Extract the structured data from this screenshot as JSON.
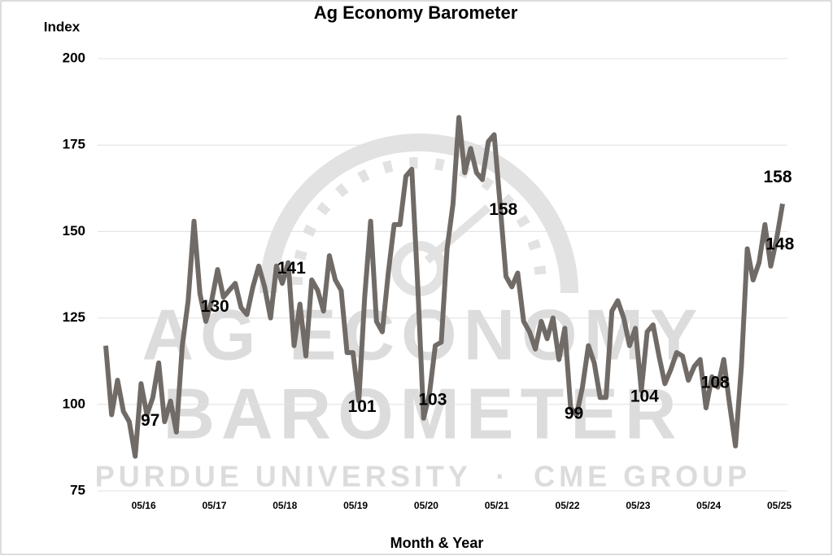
{
  "chart_data": {
    "type": "line",
    "title": "Ag Economy Barometer",
    "y_label": "Index",
    "x_label": "Month & Year",
    "watermark": [
      "AG ECONOMY",
      "BAROMETER",
      "PURDUE UNIVERSITY  ·  CME GROUP"
    ],
    "categories": [
      null,
      null,
      null,
      null,
      null,
      null,
      null,
      "05/16",
      null,
      null,
      null,
      null,
      null,
      null,
      null,
      null,
      null,
      null,
      null,
      "05/17",
      null,
      null,
      null,
      null,
      null,
      null,
      null,
      null,
      null,
      null,
      null,
      "05/18",
      null,
      null,
      null,
      null,
      null,
      null,
      null,
      null,
      null,
      null,
      null,
      "05/19",
      null,
      null,
      null,
      null,
      null,
      null,
      null,
      null,
      null,
      null,
      null,
      "05/20",
      null,
      null,
      null,
      null,
      null,
      null,
      null,
      null,
      null,
      null,
      null,
      "05/21",
      null,
      null,
      null,
      null,
      null,
      null,
      null,
      null,
      null,
      null,
      null,
      "05/22",
      null,
      null,
      null,
      null,
      null,
      null,
      null,
      null,
      null,
      null,
      null,
      "05/23",
      null,
      null,
      null,
      null,
      null,
      null,
      null,
      null,
      null,
      null,
      null,
      "05/24",
      null,
      null,
      null,
      null,
      null,
      null,
      null,
      null,
      null,
      null,
      null,
      "05/25"
    ],
    "series": [
      {
        "name": "Index",
        "color": "#716b67",
        "values": [
          117,
          97,
          107,
          98,
          95,
          85,
          106,
          97,
          102,
          112,
          95,
          101,
          92,
          117,
          130,
          153,
          132,
          124,
          130,
          139,
          131,
          133,
          135,
          128,
          126,
          134,
          140,
          134,
          125,
          140,
          135,
          141,
          117,
          129,
          114,
          136,
          133,
          127,
          143,
          136,
          133,
          115,
          115,
          101,
          131,
          153,
          124,
          121,
          138,
          152,
          152,
          166,
          168,
          135,
          96,
          103,
          117,
          118,
          145,
          158,
          183,
          167,
          174,
          167,
          165,
          176,
          178,
          158,
          137,
          134,
          138,
          124,
          121,
          116,
          124,
          119,
          125,
          113,
          122,
          99,
          97,
          105,
          117,
          112,
          102,
          102,
          127,
          130,
          125,
          117,
          122,
          104,
          121,
          123,
          114,
          106,
          110,
          115,
          114,
          107,
          111,
          113,
          99,
          108,
          105,
          113,
          100,
          88,
          111,
          145,
          136,
          141,
          152,
          140,
          148,
          158
        ],
        "value_labels": [
          null,
          null,
          null,
          null,
          null,
          null,
          null,
          "97",
          null,
          null,
          null,
          null,
          null,
          null,
          null,
          null,
          null,
          null,
          "130",
          null,
          null,
          null,
          null,
          null,
          null,
          null,
          null,
          null,
          null,
          null,
          null,
          "141",
          null,
          null,
          null,
          null,
          null,
          null,
          null,
          null,
          null,
          null,
          null,
          "101",
          null,
          null,
          null,
          null,
          null,
          null,
          null,
          null,
          null,
          null,
          null,
          "103",
          null,
          null,
          null,
          null,
          null,
          null,
          null,
          null,
          null,
          null,
          null,
          "158",
          null,
          null,
          null,
          null,
          null,
          null,
          null,
          null,
          null,
          null,
          null,
          "99",
          null,
          null,
          null,
          null,
          null,
          null,
          null,
          null,
          null,
          null,
          null,
          "104",
          null,
          null,
          null,
          null,
          null,
          null,
          null,
          null,
          null,
          null,
          null,
          "108",
          null,
          null,
          null,
          null,
          null,
          null,
          null,
          null,
          null,
          null,
          "148",
          "158"
        ]
      }
    ],
    "ylim": [
      75,
      200
    ],
    "yticks": [
      75,
      100,
      125,
      150,
      175,
      200
    ],
    "grid": true
  }
}
